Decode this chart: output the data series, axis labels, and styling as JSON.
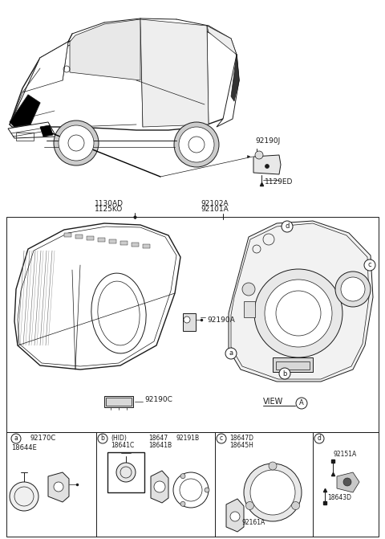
{
  "bg_color": "#ffffff",
  "line_color": "#1a1a1a",
  "text_color": "#1a1a1a",
  "gray_color": "#555555",
  "fig_width": 4.8,
  "fig_height": 6.71,
  "dpi": 100,
  "top_labels": {
    "part1": "92190J",
    "part2": "1129ED"
  },
  "mid_labels": {
    "l1": "1130AD",
    "l2": "1125KO",
    "r1": "92102A",
    "r2": "92101A",
    "a1": "92190A",
    "a2": "92190C",
    "view": "VIEW",
    "viewA": "A"
  },
  "callouts": [
    "a",
    "b",
    "c",
    "d"
  ],
  "bottom_panels": [
    {
      "id": "a",
      "labels": [
        "92170C",
        "18644E"
      ]
    },
    {
      "id": "b",
      "labels": [
        "(HID)",
        "18641C",
        "18647",
        "18641B",
        "92191B"
      ]
    },
    {
      "id": "c",
      "labels": [
        "18647D",
        "18645H",
        "92161A"
      ]
    },
    {
      "id": "d",
      "labels": [
        "92151A",
        "18643D"
      ]
    }
  ]
}
